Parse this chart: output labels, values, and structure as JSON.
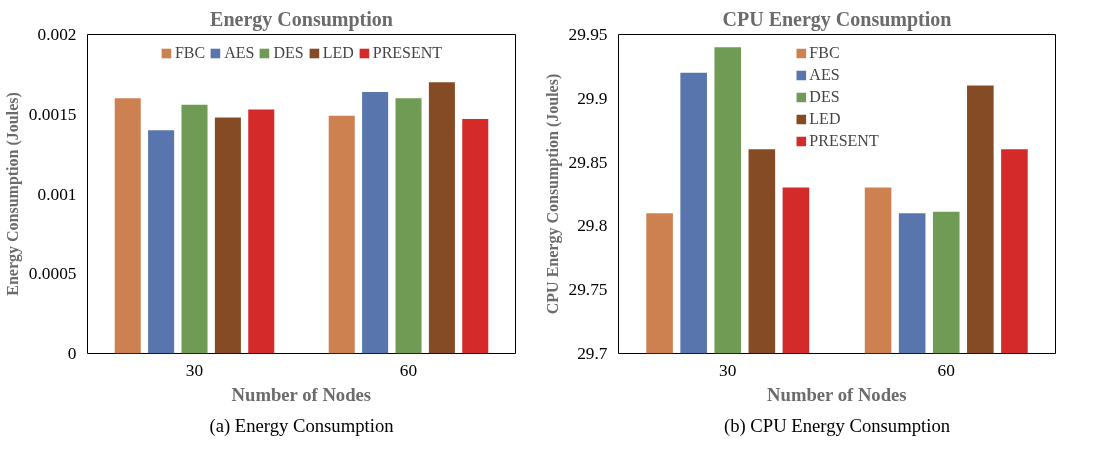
{
  "chart_data": [
    {
      "type": "bar",
      "title": "Energy Consumption",
      "xlabel": "Number of Nodes",
      "ylabel": "Energy Consumption (Joules)",
      "categories": [
        "30",
        "60"
      ],
      "series": [
        {
          "name": "FBC",
          "color": "#cd8050",
          "values": [
            0.0016,
            0.00149
          ]
        },
        {
          "name": "AES",
          "color": "#5875ad",
          "values": [
            0.0014,
            0.00164
          ]
        },
        {
          "name": "DES",
          "color": "#709b54",
          "values": [
            0.00156,
            0.0016
          ]
        },
        {
          "name": "LED",
          "color": "#844b24",
          "values": [
            0.00148,
            0.0017
          ]
        },
        {
          "name": "PRESENT",
          "color": "#d42a2a",
          "values": [
            0.00153,
            0.00147
          ]
        }
      ],
      "ylim": [
        0,
        0.002
      ],
      "yticks": [
        0,
        0.0005,
        0.001,
        0.0015,
        0.002
      ],
      "grid": false,
      "legend": "top",
      "annotations": [
        "(a) Energy Consumption"
      ]
    },
    {
      "type": "bar",
      "title": "CPU Energy Consumption",
      "xlabel": "Number of Nodes",
      "ylabel": "CPU Energy Consumption (Joules)",
      "categories": [
        "30",
        "60"
      ],
      "series": [
        {
          "name": "FBC",
          "color": "#cd8050",
          "values": [
            29.81,
            29.83
          ]
        },
        {
          "name": "AES",
          "color": "#5875ad",
          "values": [
            29.92,
            29.81
          ]
        },
        {
          "name": "DES",
          "color": "#709b54",
          "values": [
            29.94,
            29.811
          ]
        },
        {
          "name": "LED",
          "color": "#844b24",
          "values": [
            29.86,
            29.91
          ]
        },
        {
          "name": "PRESENT",
          "color": "#d42a2a",
          "values": [
            29.83,
            29.86
          ]
        }
      ],
      "ylim": [
        29.7,
        29.95
      ],
      "yticks": [
        29.7,
        29.75,
        29.8,
        29.85,
        29.9,
        29.95
      ],
      "grid": false,
      "legend": "top",
      "annotations": [
        "(b) CPU Energy Consumption"
      ]
    }
  ]
}
